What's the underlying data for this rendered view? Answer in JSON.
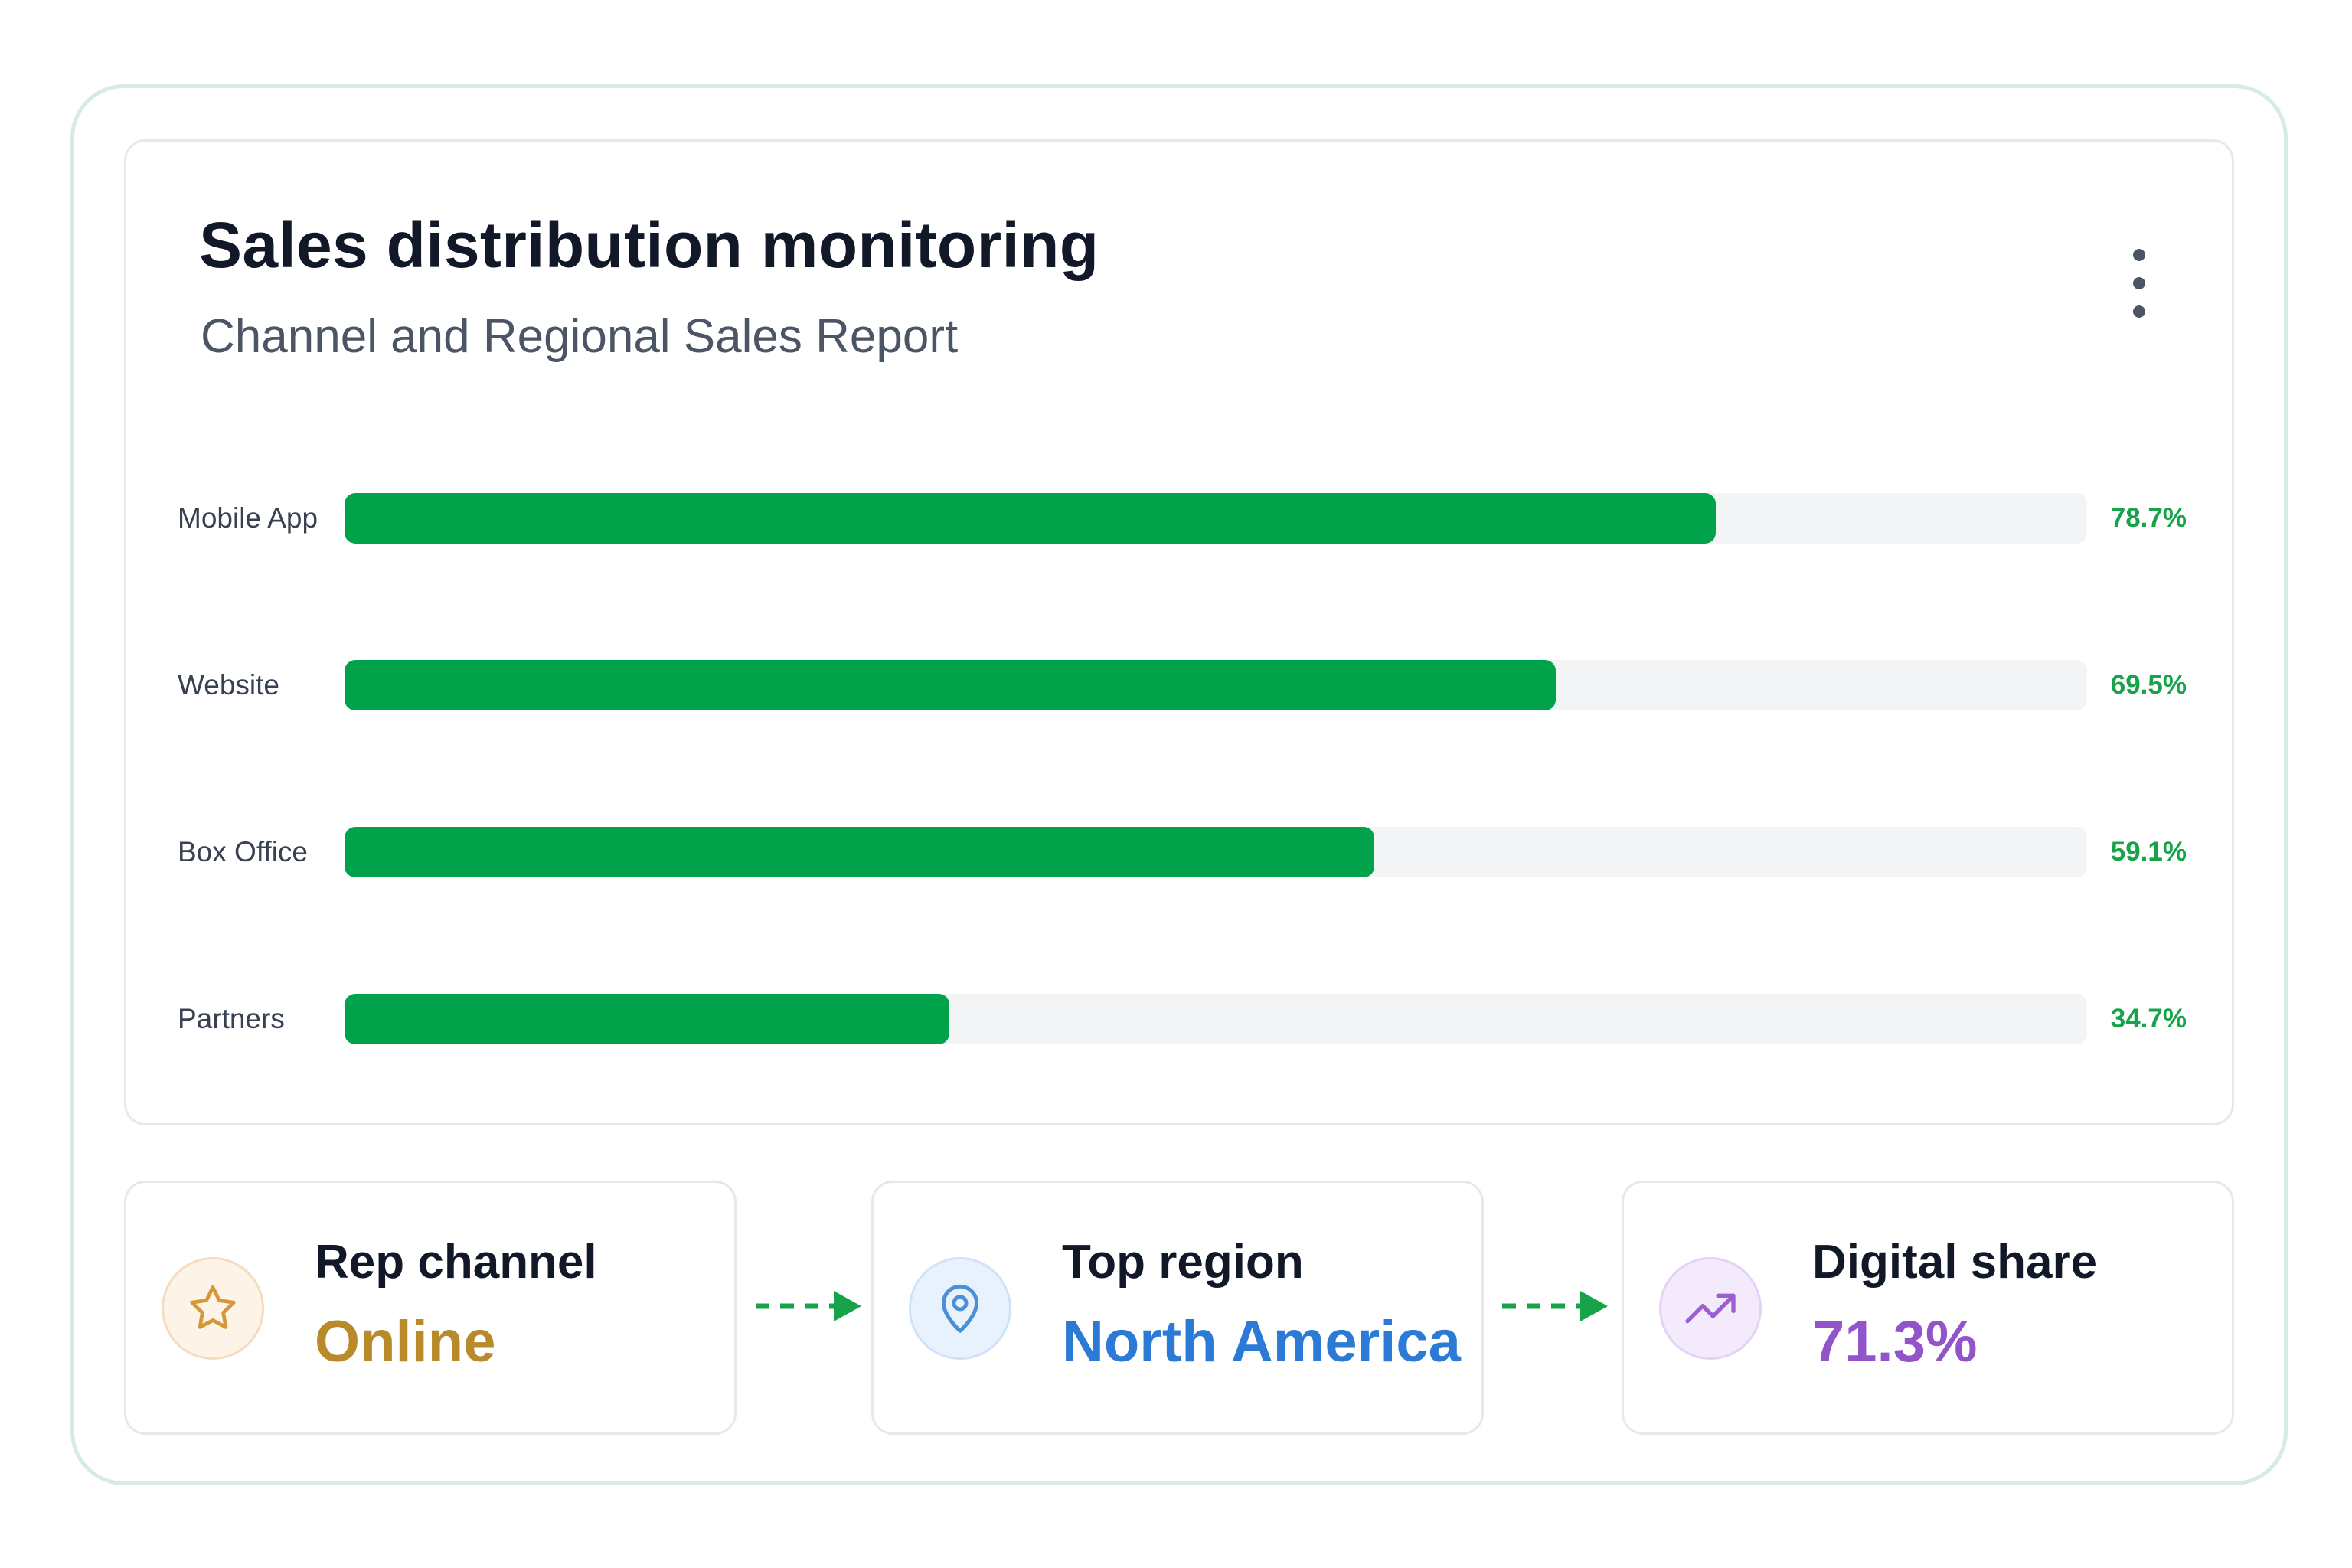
{
  "header": {
    "title": "Sales distribution monitoring",
    "subtitle": "Channel and Regional Sales Report",
    "menu_icon": "more-vertical-icon"
  },
  "chart_data": {
    "type": "bar",
    "orientation": "horizontal",
    "categories": [
      "Mobile App",
      "Website",
      "Box Office",
      "Partners"
    ],
    "values": [
      78.7,
      69.5,
      59.1,
      34.7
    ],
    "value_labels": [
      "78.7%",
      "69.5%",
      "59.1%",
      "34.7%"
    ],
    "bar_color": "#00a34a",
    "track_color": "#f3f4f6",
    "value_color": "#16a34a"
  },
  "stats": [
    {
      "label": "Rep channel",
      "value": "Online",
      "icon": "star-icon",
      "color": "#b88a2a",
      "icon_bg": "#fdf3e7",
      "icon_border": "#f5dcc0"
    },
    {
      "label": "Top region",
      "value": "North America",
      "icon": "map-pin-icon",
      "color": "#2b7bd6",
      "icon_bg": "#e8f2fc",
      "icon_border": "#cfe3f8"
    },
    {
      "label": "Digital share",
      "value": "71.3%",
      "icon": "trending-up-icon",
      "color": "#9155c9",
      "icon_bg": "#f3eafc",
      "icon_border": "#e3d2f6"
    }
  ],
  "connector_icon": "dashed-arrow-right-icon",
  "connector_color": "#16a34a"
}
